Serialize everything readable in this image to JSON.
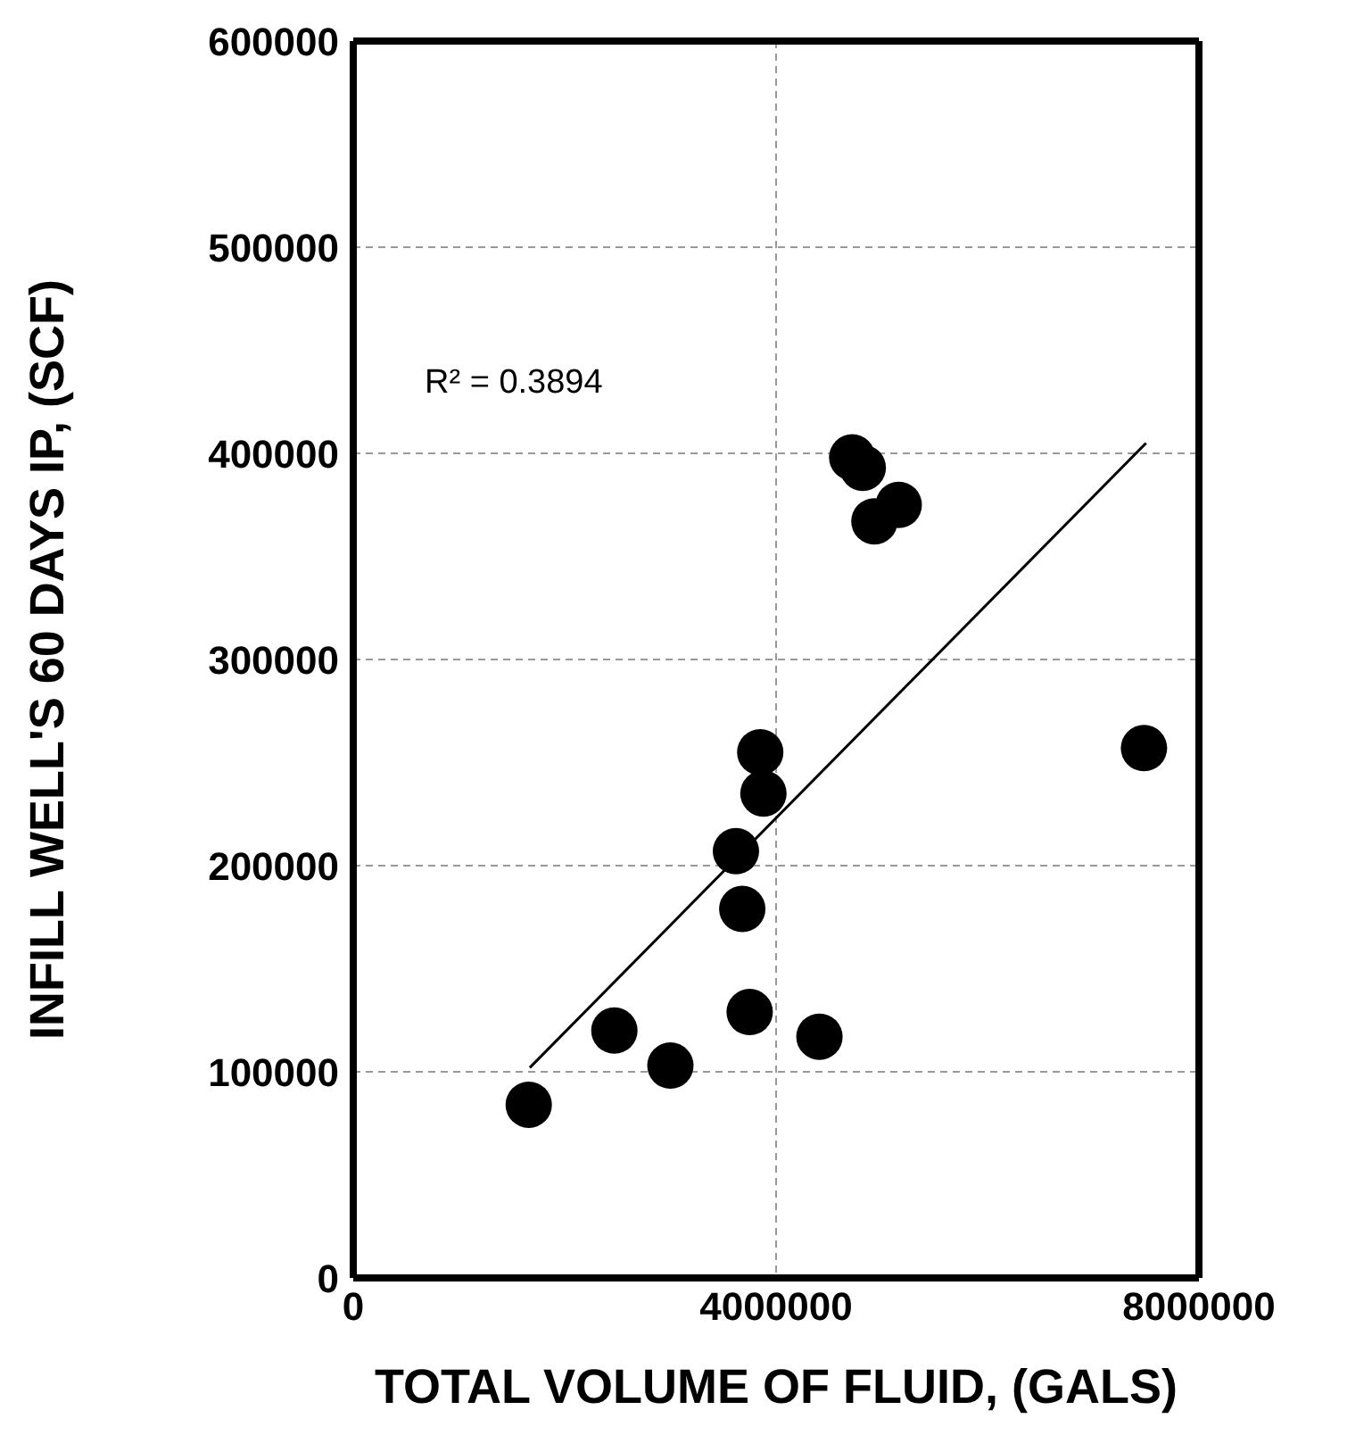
{
  "chart_data": {
    "type": "scatter",
    "xlabel": "TOTAL VOLUME OF FLUID, (GALS)",
    "ylabel": "INFILL WELL'S 60 DAYS IP, (SCF)",
    "annotations": [
      "R² = 0.3894"
    ],
    "xlim": [
      0,
      8000000
    ],
    "xticks": [
      0,
      4000000,
      8000000
    ],
    "ylim": [
      0,
      600000
    ],
    "yticks": [
      0,
      100000,
      200000,
      300000,
      400000,
      500000,
      600000
    ],
    "grid": true,
    "marker": "circle",
    "series": [
      {
        "type": "scatter",
        "color": "#000000",
        "x": [
          1660000,
          2470000,
          3000000,
          3620000,
          3680000,
          3750000,
          3850000,
          3880000,
          4410000,
          4720000,
          4820000,
          4930000,
          5160000,
          7480000
        ],
        "values": [
          84000,
          120000,
          103000,
          207000,
          179000,
          129000,
          255000,
          235000,
          117000,
          398000,
          393000,
          367000,
          375000,
          257000
        ]
      },
      {
        "type": "line",
        "color": "#000000",
        "x": [
          1670000,
          7500000
        ],
        "values": [
          102000,
          405000
        ],
        "line_style": "solid",
        "marker": "none"
      }
    ]
  }
}
